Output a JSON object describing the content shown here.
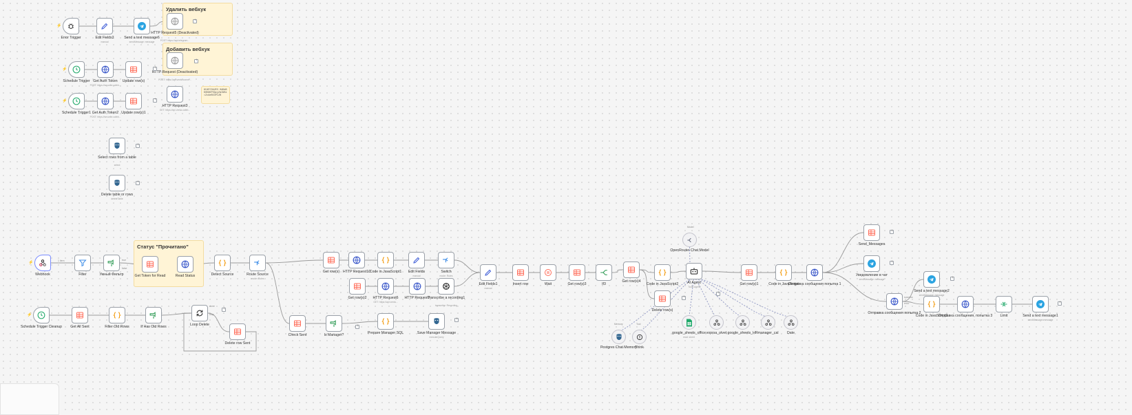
{
  "stickies": [
    {
      "title": "Удалить вебхук"
    },
    {
      "title": "Добавить вебхук"
    },
    {
      "title": "Статус \"Прочитано\""
    },
    {
      "text": "8CAFCDA2E3 0AHW8K0K8KPSQzyZmI9Bi=ZcAeB5nPI2B"
    }
  ],
  "nodes": [
    {
      "name": "Error Trigger",
      "sub": "",
      "icon": "bug"
    },
    {
      "name": "Edit Fields2",
      "sub": "manual",
      "icon": "pencil"
    },
    {
      "name": "Send a text message6",
      "sub": "sendMessage: message",
      "icon": "telegram"
    },
    {
      "name": "HTTP Request5 (Deactivated)",
      "sub": "POST: https://api.telegram...",
      "icon": "globe-muted"
    },
    {
      "name": "Schedule Trigger",
      "sub": "",
      "icon": "clock"
    },
    {
      "name": "Get Auth Token",
      "sub": "POST: https://securite.cafeb...",
      "icon": "globe"
    },
    {
      "name": "Update row(s)",
      "sub": "",
      "icon": "table"
    },
    {
      "name": "HTTP Request (Deactivated)",
      "sub": "POST: https://api.venta.conne...",
      "icon": "globe-muted"
    },
    {
      "name": "Schedule Trigger1",
      "sub": "",
      "icon": "clock"
    },
    {
      "name": "Get Auth Token2",
      "sub": "POST: https://securite.cafeb...",
      "icon": "globe"
    },
    {
      "name": "Update row(s)1",
      "sub": "",
      "icon": "table"
    },
    {
      "name": "HTTP Request3",
      "sub": "GET: https://api.venta.cafeb...",
      "icon": "globe"
    },
    {
      "name": "Select rows from a table",
      "sub": "select",
      "icon": "postgres"
    },
    {
      "name": "Delete table or rows",
      "sub": "deleteTable",
      "icon": "postgres"
    },
    {
      "name": "Webhook",
      "sub": "",
      "icon": "webhook"
    },
    {
      "name": "Filter",
      "sub": "",
      "icon": "filter"
    },
    {
      "name": "Умный Фильтр",
      "sub": "",
      "icon": "switch"
    },
    {
      "name": "Get Token for Read",
      "sub": "",
      "icon": "table"
    },
    {
      "name": "Read Status",
      "sub": "",
      "icon": "globe"
    },
    {
      "name": "Detect Source",
      "sub": "",
      "icon": "code"
    },
    {
      "name": "Route Source",
      "sub": "mode: Rules",
      "icon": "switch-blue"
    },
    {
      "name": "Get row(s)",
      "sub": "",
      "icon": "table"
    },
    {
      "name": "HTTP Request10",
      "sub": "",
      "icon": "globe"
    },
    {
      "name": "Code in JavaScript1",
      "sub": "",
      "icon": "code"
    },
    {
      "name": "Edit Fields",
      "sub": "manual",
      "icon": "pencil"
    },
    {
      "name": "Switch",
      "sub": "mode: Rules",
      "icon": "switch-blue"
    },
    {
      "name": "Get row(s)2",
      "sub": "",
      "icon": "table"
    },
    {
      "name": "HTTP Request6",
      "sub": "GET: https://api.venta...",
      "icon": "globe"
    },
    {
      "name": "HTTP Request7",
      "sub": "",
      "icon": "globe"
    },
    {
      "name": "Transcribe a recording1",
      "sub": "transcribe: Recording",
      "icon": "openai"
    },
    {
      "name": "Edit Fields1",
      "sub": "manual",
      "icon": "pencil"
    },
    {
      "name": "Insert row",
      "sub": "",
      "icon": "table"
    },
    {
      "name": "Wait",
      "sub": "",
      "icon": "pause"
    },
    {
      "name": "Get row(s)3",
      "sub": "",
      "icon": "table"
    },
    {
      "name": "If3",
      "sub": "",
      "icon": "if"
    },
    {
      "name": "Get row(s)4",
      "sub": "",
      "icon": "table"
    },
    {
      "name": "Code in JavaScript2",
      "sub": "",
      "icon": "code"
    },
    {
      "name": "Delete row(s)",
      "sub": "",
      "icon": "table"
    },
    {
      "name": "AI Agent",
      "sub": "Tools Agent",
      "icon": "robot"
    },
    {
      "name": "OpenRouter Chat Model",
      "sub": "",
      "icon": "router"
    },
    {
      "name": "Postgres Chat Memory",
      "sub": "",
      "icon": "postgres"
    },
    {
      "name": "Think",
      "sub": "",
      "icon": "think"
    },
    {
      "name": "google_sheets_office",
      "sub": "read: sheet",
      "icon": "sheets"
    },
    {
      "name": "voprsa_otvet",
      "sub": "",
      "icon": "tool"
    },
    {
      "name": "google_sheets_HR",
      "sub": "",
      "icon": "tool"
    },
    {
      "name": "manager_cal",
      "sub": "",
      "icon": "tool"
    },
    {
      "name": "Date",
      "sub": "",
      "icon": "tool"
    },
    {
      "name": "Get row(s)1",
      "sub": "",
      "icon": "table"
    },
    {
      "name": "Code in JavaScript",
      "sub": "",
      "icon": "code"
    },
    {
      "name": "Отправка сообщения попытка 1",
      "sub": "",
      "icon": "globe"
    },
    {
      "name": "Send_Messages",
      "sub": "",
      "icon": "table"
    },
    {
      "name": "Уведомление в чат",
      "sub": "sendMessage: message",
      "icon": "telegram"
    },
    {
      "name": "Send a text message2",
      "sub": "sendMessage: message",
      "icon": "telegram"
    },
    {
      "name": "Отправка сообщения попытка 2",
      "sub": "",
      "icon": "globe"
    },
    {
      "name": "Code in JavaScript3",
      "sub": "",
      "icon": "code"
    },
    {
      "name": "Отправка сообщения, попытка 3",
      "sub": "",
      "icon": "globe"
    },
    {
      "name": "Limit",
      "sub": "",
      "icon": "limit"
    },
    {
      "name": "Send a text message1",
      "sub": "sendMessage: message",
      "icon": "telegram"
    },
    {
      "name": "Schedule Trigger Cleanup",
      "sub": "",
      "icon": "clock"
    },
    {
      "name": "Get All Sent",
      "sub": "",
      "icon": "table"
    },
    {
      "name": "Filter Old Rows",
      "sub": "",
      "icon": "code"
    },
    {
      "name": "If Has Old Rows",
      "sub": "",
      "icon": "switch"
    },
    {
      "name": "Loop Delete",
      "sub": "",
      "icon": "loop"
    },
    {
      "name": "Delete row Sent",
      "sub": "",
      "icon": "table"
    },
    {
      "name": "Check Sent",
      "sub": "",
      "icon": "table"
    },
    {
      "name": "Is Manager?",
      "sub": "",
      "icon": "switch"
    },
    {
      "name": "Prepare Manager SQL",
      "sub": "",
      "icon": "code"
    },
    {
      "name": "Save Manager Message",
      "sub": "executeQuery",
      "icon": "postgres"
    }
  ],
  "edge_labels": {
    "webhook_out": "1 item",
    "agent_model": "Model",
    "agent_memory": "Memory",
    "agent_tool": "Tool",
    "branch_true": "true",
    "branch_false": "false",
    "done": "done",
    "loop": "loop",
    "success": "success",
    "error": "error"
  },
  "colors": {
    "canvas": "#f5f5f5",
    "sticky": "#fff4d6",
    "table_icon": "#ff6d5a",
    "http_icon": "#2f4ec6",
    "code_icon": "#f29500",
    "clock_icon": "#21a96b",
    "telegram_icon": "#2aa3e1",
    "switch_icon": "#2d9a54",
    "filter_icon": "#3c8ce7",
    "postgres_icon": "#336791",
    "trigger_bolt": "#ff6d5a"
  }
}
